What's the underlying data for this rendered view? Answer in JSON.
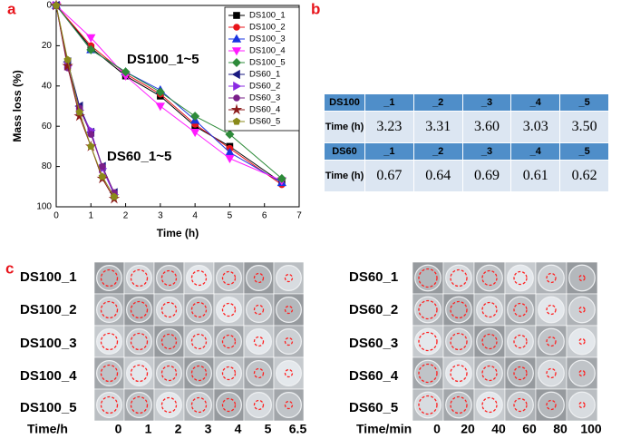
{
  "panels": [
    "a",
    "b",
    "c"
  ],
  "chart_data": {
    "type": "line",
    "xlabel": "Time (h)",
    "ylabel": "Mass loss (%)",
    "annotations": [
      "DS100_1~5",
      "DS60_1~5"
    ],
    "xlim": [
      0,
      7
    ],
    "xticks": [
      0,
      1,
      2,
      3,
      4,
      5,
      6,
      7
    ],
    "ylim": [
      0,
      100
    ],
    "yticks": [
      0,
      20,
      40,
      60,
      80,
      100
    ],
    "y_reversed": true,
    "legend": "upper right",
    "series": [
      {
        "name": "DS100_1",
        "color": "#000000",
        "marker": "square",
        "x": [
          0,
          1,
          2,
          3,
          4,
          5,
          6.5
        ],
        "values": [
          0,
          21,
          35,
          45,
          60,
          70,
          88
        ]
      },
      {
        "name": "DS100_2",
        "color": "#e8141b",
        "marker": "circle",
        "x": [
          0,
          1,
          2,
          3,
          4,
          5,
          6.5
        ],
        "values": [
          0,
          20,
          34,
          44,
          59,
          71,
          89
        ]
      },
      {
        "name": "DS100_3",
        "color": "#1a35e0",
        "marker": "triangle-up",
        "x": [
          0,
          1,
          2,
          3,
          4,
          5,
          6.5
        ],
        "values": [
          0,
          22,
          33,
          42,
          57,
          73,
          88
        ]
      },
      {
        "name": "DS100_4",
        "color": "#ff1aff",
        "marker": "triangle-down",
        "x": [
          0,
          1,
          2,
          3,
          4,
          5,
          6.5
        ],
        "values": [
          0,
          16,
          35,
          50,
          63,
          76,
          87
        ]
      },
      {
        "name": "DS100_5",
        "color": "#2e8b3a",
        "marker": "diamond",
        "x": [
          0,
          1,
          2,
          3,
          4,
          5,
          6.5
        ],
        "values": [
          0,
          22,
          33,
          43,
          55,
          64,
          86
        ]
      },
      {
        "name": "DS60_1",
        "color": "#1a1a80",
        "marker": "triangle-left",
        "x": [
          0,
          0.33,
          0.67,
          1,
          1.33,
          1.67
        ],
        "values": [
          0,
          28,
          50,
          63,
          80,
          93
        ]
      },
      {
        "name": "DS60_2",
        "color": "#8a2be2",
        "marker": "triangle-right",
        "x": [
          0,
          0.33,
          0.67,
          1,
          1.33,
          1.67
        ],
        "values": [
          0,
          30,
          52,
          62,
          81,
          94
        ]
      },
      {
        "name": "DS60_3",
        "color": "#7a1f8a",
        "marker": "circle",
        "x": [
          0,
          0.33,
          0.67,
          1,
          1.33,
          1.67
        ],
        "values": [
          0,
          31,
          51,
          64,
          80,
          93
        ]
      },
      {
        "name": "DS60_4",
        "color": "#8b1a1a",
        "marker": "star",
        "x": [
          0,
          0.33,
          0.67,
          1,
          1.33,
          1.67
        ],
        "values": [
          0,
          30,
          55,
          70,
          86,
          96
        ]
      },
      {
        "name": "DS60_5",
        "color": "#8a8a1a",
        "marker": "pentagon",
        "x": [
          0,
          0.33,
          0.67,
          1,
          1.33,
          1.67
        ],
        "values": [
          0,
          27,
          53,
          70,
          85,
          95
        ]
      }
    ]
  },
  "table": {
    "rows": [
      [
        "DS100",
        "_1",
        "_2",
        "_3",
        "_4",
        "_5"
      ],
      [
        "Time (h)",
        "3.23",
        "3.31",
        "3.60",
        "3.03",
        "3.50"
      ],
      [
        "DS60",
        "_1",
        "_2",
        "_3",
        "_4",
        "_5"
      ],
      [
        "Time (h)",
        "0.67",
        "0.64",
        "0.69",
        "0.61",
        "0.62"
      ]
    ]
  },
  "photos": {
    "left": {
      "rows": [
        "DS100_1",
        "DS100_2",
        "DS100_3",
        "DS100_4",
        "DS100_5"
      ],
      "axis_label": "Time/h",
      "columns": [
        "0",
        "1",
        "2",
        "3",
        "4",
        "5",
        "6.5"
      ]
    },
    "right": {
      "rows": [
        "DS60_1",
        "DS60_2",
        "DS60_3",
        "DS60_4",
        "DS60_5"
      ],
      "axis_label": "Time/min",
      "columns": [
        "0",
        "20",
        "40",
        "60",
        "80",
        "100"
      ]
    }
  }
}
